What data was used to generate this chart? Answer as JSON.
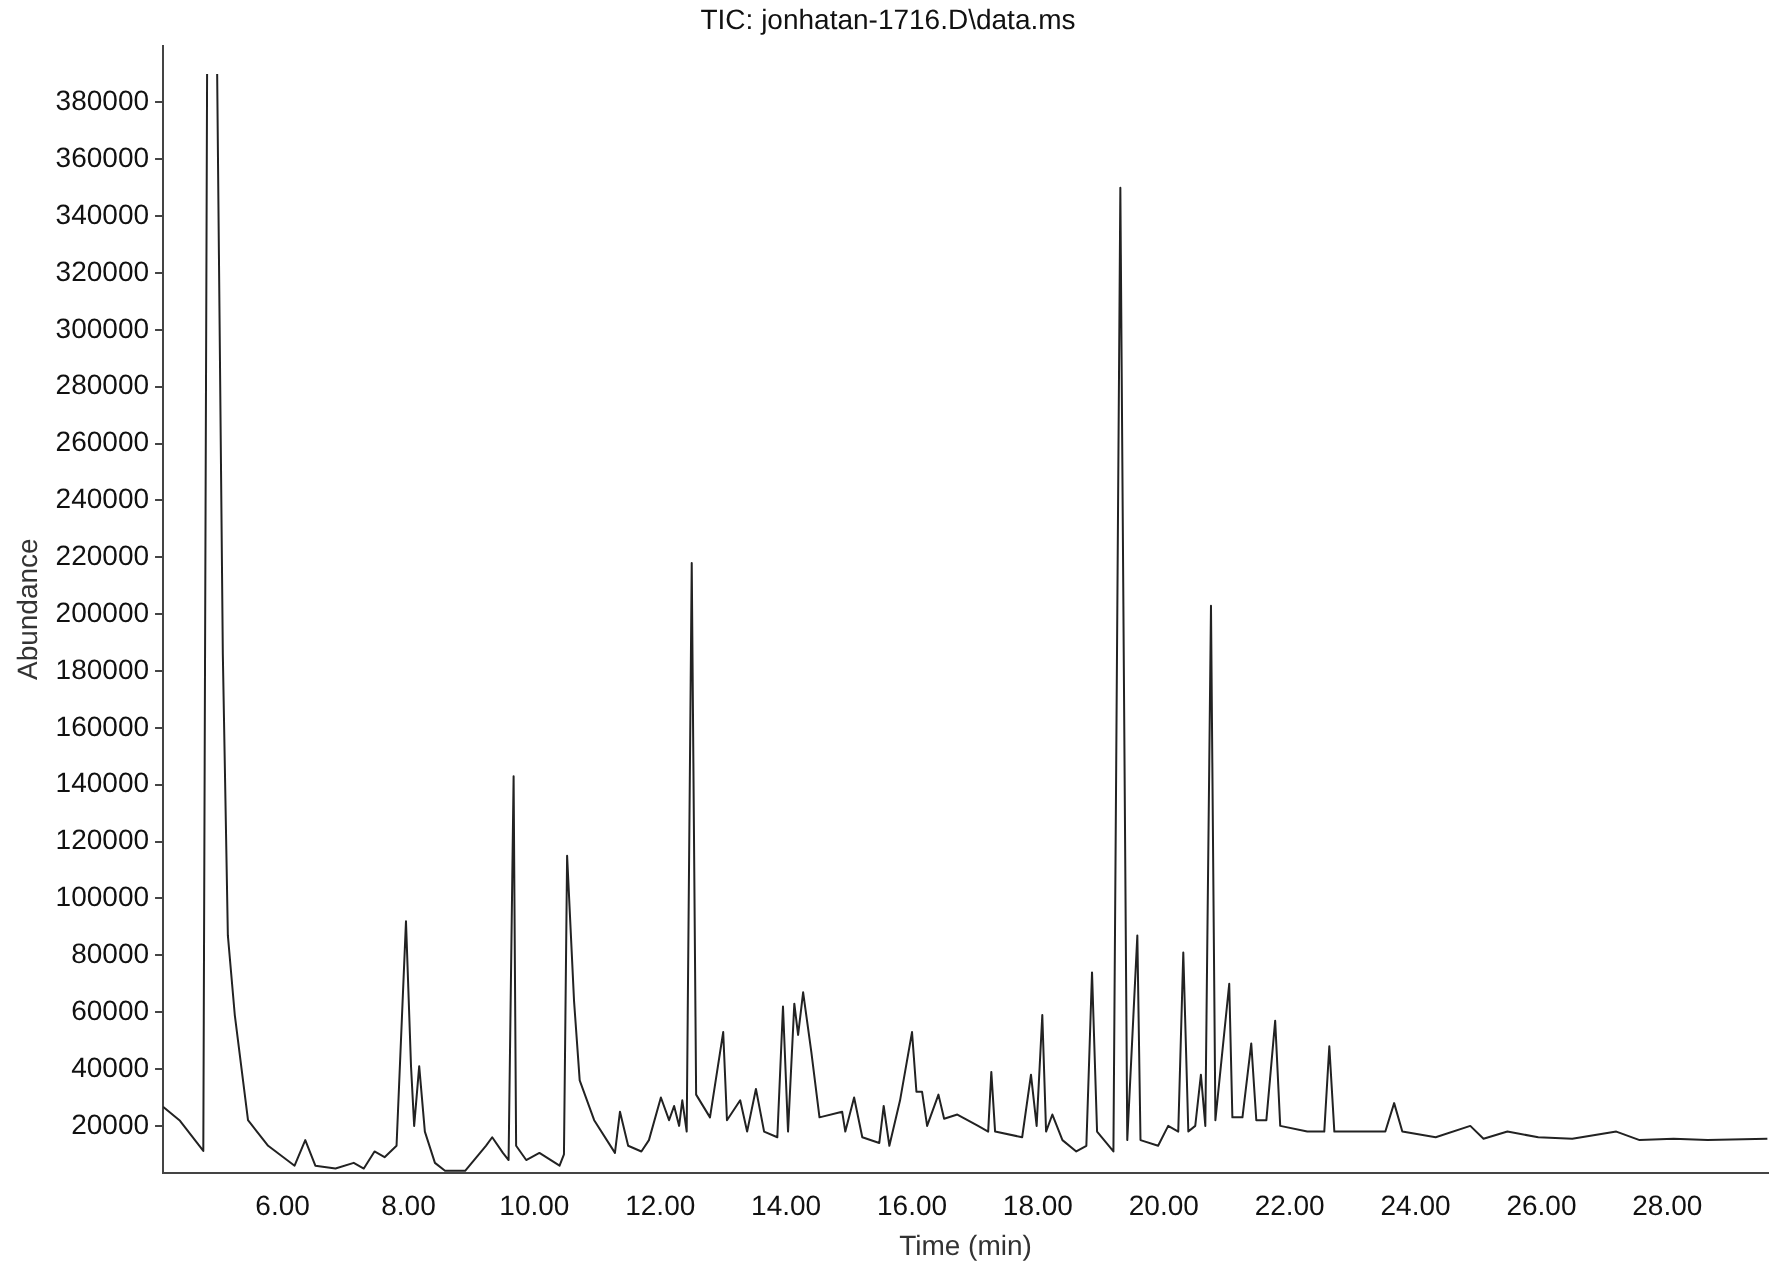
{
  "chart_data": {
    "type": "line",
    "title": "TIC: jonhatan-1716.D\\data.ms",
    "xlabel": "Time (min)",
    "ylabel": "Abundance",
    "x": [
      4.1,
      4.37,
      4.74,
      4.8,
      4.88,
      4.96,
      5.05,
      5.13,
      5.24,
      5.45,
      5.77,
      6.19,
      6.36,
      6.52,
      6.84,
      7.13,
      7.29,
      7.46,
      7.62,
      7.81,
      7.96,
      8.04,
      8.09,
      8.17,
      8.26,
      8.42,
      8.58,
      8.9,
      9.23,
      9.33,
      9.5,
      9.59,
      9.67,
      9.71,
      9.87,
      10.08,
      10.4,
      10.47,
      10.52,
      10.63,
      10.72,
      10.95,
      11.28,
      11.36,
      11.49,
      11.7,
      11.82,
      12.01,
      12.14,
      12.22,
      12.3,
      12.35,
      12.42,
      12.5,
      12.57,
      12.79,
      13.0,
      13.06,
      13.27,
      13.38,
      13.52,
      13.65,
      13.86,
      13.95,
      14.03,
      14.13,
      14.19,
      14.27,
      14.4,
      14.53,
      14.89,
      14.94,
      15.08,
      15.21,
      15.48,
      15.55,
      15.64,
      15.81,
      16.0,
      16.07,
      16.16,
      16.24,
      16.42,
      16.51,
      16.72,
      17.05,
      17.21,
      17.26,
      17.32,
      17.75,
      17.89,
      17.98,
      18.07,
      18.13,
      18.23,
      18.39,
      18.61,
      18.77,
      18.86,
      18.94,
      19.2,
      19.31,
      19.42,
      19.58,
      19.63,
      19.91,
      20.07,
      20.23,
      20.31,
      20.39,
      20.5,
      20.59,
      20.66,
      20.75,
      20.82,
      21.04,
      21.09,
      21.25,
      21.39,
      21.47,
      21.63,
      21.77,
      21.85,
      22.28,
      22.55,
      22.63,
      22.71,
      23.25,
      23.52,
      23.66,
      23.79,
      24.32,
      24.87,
      25.08,
      25.46,
      25.95,
      26.49,
      27.19,
      27.56,
      28.1,
      28.64,
      29.59
    ],
    "series": [
      {
        "color": "#222222",
        "values": [
          26700,
          21800,
          11200,
          390000,
          null,
          390000,
          186000,
          87000,
          59000,
          22000,
          13000,
          6000,
          15000,
          6000,
          5000,
          7000,
          5000,
          11000,
          9000,
          13000,
          92000,
          41000,
          20000,
          41000,
          18000,
          7000,
          4200,
          4200,
          13000,
          16000,
          10500,
          8000,
          143000,
          13000,
          8000,
          10500,
          6000,
          10000,
          115000,
          64000,
          36000,
          22000,
          10500,
          25000,
          13000,
          11000,
          15000,
          30000,
          22000,
          27000,
          20000,
          29000,
          18000,
          218000,
          31000,
          23000,
          53000,
          22000,
          29000,
          18000,
          33000,
          18000,
          16000,
          62000,
          18000,
          63000,
          52000,
          67000,
          46000,
          23000,
          25000,
          18000,
          30000,
          16000,
          14000,
          27000,
          13000,
          29000,
          53000,
          32000,
          32000,
          20000,
          31000,
          22500,
          24000,
          20000,
          18000,
          39000,
          18000,
          16000,
          38000,
          20000,
          59000,
          18000,
          24000,
          15000,
          11000,
          13000,
          74000,
          18000,
          11000,
          350000,
          15000,
          87000,
          15000,
          13000,
          20000,
          18000,
          81000,
          18000,
          20000,
          38000,
          20000,
          203000,
          22000,
          70000,
          23000,
          23000,
          49000,
          22000,
          22000,
          57000,
          20000,
          18000,
          18000,
          48000,
          18000,
          18000,
          18000,
          28000,
          18000,
          16000,
          20000,
          15500,
          18000,
          16000,
          15500,
          18000,
          15000,
          15500,
          15000,
          15500
        ]
      }
    ],
    "xlim": [
      4.1,
      29.6
    ],
    "ylim": [
      3500,
      400000
    ],
    "xticks": [
      {
        "value": 6,
        "label": "6.00"
      },
      {
        "value": 8,
        "label": "8.00"
      },
      {
        "value": 10,
        "label": "10.00"
      },
      {
        "value": 12,
        "label": "12.00"
      },
      {
        "value": 14,
        "label": "14.00"
      },
      {
        "value": 16,
        "label": "16.00"
      },
      {
        "value": 18,
        "label": "18.00"
      },
      {
        "value": 20,
        "label": "20.00"
      },
      {
        "value": 22,
        "label": "22.00"
      },
      {
        "value": 24,
        "label": "24.00"
      },
      {
        "value": 26,
        "label": "26.00"
      },
      {
        "value": 28,
        "label": "28.00"
      }
    ],
    "yticks": [
      20000,
      40000,
      60000,
      80000,
      100000,
      120000,
      140000,
      160000,
      180000,
      200000,
      220000,
      240000,
      260000,
      280000,
      300000,
      320000,
      340000,
      360000,
      380000
    ]
  }
}
